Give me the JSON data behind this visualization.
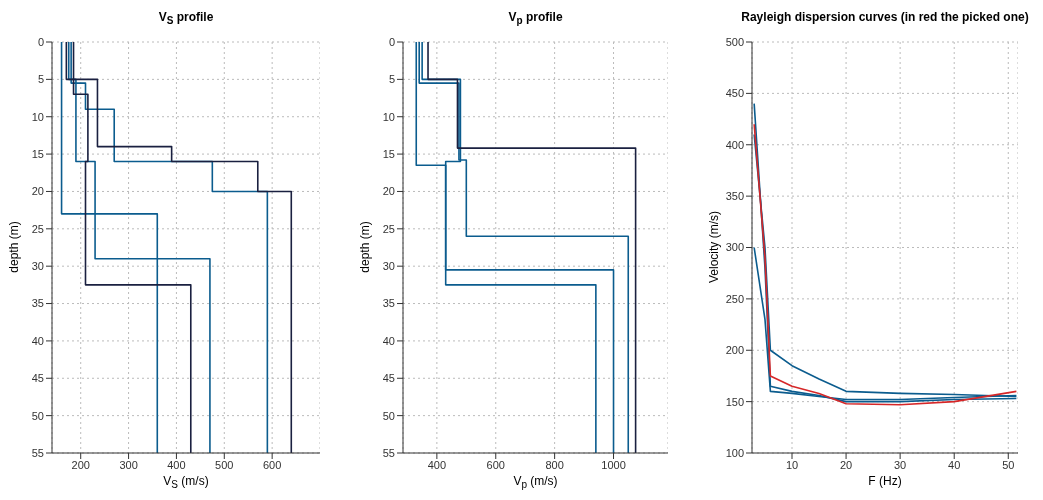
{
  "chart_data": [
    {
      "type": "line",
      "title": "V$_{S}$ profile",
      "xlabel": "V$_{S}$ (m/s)",
      "ylabel": "depth (m)",
      "xlim": [
        140,
        700
      ],
      "xticks": [
        200,
        300,
        400,
        500,
        600
      ],
      "ylim": [
        55,
        0
      ],
      "yticks": [
        0,
        5,
        10,
        15,
        20,
        25,
        30,
        35,
        40,
        45,
        50,
        55
      ],
      "grid": true,
      "series": [
        {
          "color": "#0b5c8e",
          "x": [
            160,
            160,
            360,
            360
          ],
          "values": [
            0,
            23,
            23,
            55
          ]
        },
        {
          "color": "#0b5c8e",
          "x": [
            175,
            175,
            190,
            190,
            230,
            230,
            470,
            470
          ],
          "values": [
            0,
            5,
            5,
            16,
            16,
            29,
            29,
            55
          ]
        },
        {
          "color": "#0b5c8e",
          "x": [
            180,
            180,
            210,
            210,
            270,
            270,
            475,
            475,
            590,
            590
          ],
          "values": [
            0,
            5.5,
            5.5,
            9,
            9,
            16,
            16,
            20,
            20,
            55
          ]
        },
        {
          "color": "#1a2040",
          "x": [
            170,
            170,
            235,
            235,
            390,
            390,
            570,
            570,
            640,
            640
          ],
          "values": [
            0,
            5,
            5,
            14,
            14,
            16,
            16,
            20,
            20,
            55
          ]
        },
        {
          "color": "#1a2040",
          "x": [
            185,
            185,
            215,
            215,
            210,
            210,
            430,
            430
          ],
          "values": [
            0,
            7,
            7,
            16,
            16,
            32.5,
            32.5,
            55
          ]
        }
      ]
    },
    {
      "type": "line",
      "title": "V$_{p}$ profile",
      "xlabel": "V$_{p}$ (m/s)",
      "ylabel": "depth (m)",
      "xlim": [
        285,
        1185
      ],
      "xticks": [
        400,
        600,
        800,
        1000
      ],
      "ylim": [
        55,
        0
      ],
      "yticks": [
        0,
        5,
        10,
        15,
        20,
        25,
        30,
        35,
        40,
        45,
        50,
        55
      ],
      "grid": true,
      "series": [
        {
          "color": "#0b5c8e",
          "x": [
            330,
            330,
            430,
            430,
            940,
            940
          ],
          "values": [
            0,
            16.5,
            16.5,
            32.5,
            32.5,
            55
          ]
        },
        {
          "color": "#0b5c8e",
          "x": [
            350,
            350,
            480,
            480,
            430,
            430,
            1000,
            1000
          ],
          "values": [
            0,
            5,
            5,
            16,
            16,
            30.5,
            30.5,
            55
          ]
        },
        {
          "color": "#0b5c8e",
          "x": [
            340,
            340,
            475,
            475,
            500,
            500,
            1050,
            1050
          ],
          "values": [
            0,
            5.5,
            5.5,
            15.8,
            15.8,
            26,
            26,
            55
          ]
        },
        {
          "color": "#1a2040",
          "x": [
            370,
            370,
            470,
            470,
            1075,
            1075
          ],
          "values": [
            0,
            5,
            5,
            14.2,
            14.2,
            55
          ]
        }
      ]
    },
    {
      "type": "line",
      "title": "Rayleigh dispersion curves (in red the picked one)",
      "xlabel": "F (Hz)",
      "ylabel": "Velocity (m/s)",
      "xlim": [
        2.6,
        51.8
      ],
      "xticks": [
        10,
        20,
        30,
        40,
        50
      ],
      "ylim": [
        100,
        500
      ],
      "yticks": [
        100,
        150,
        200,
        250,
        300,
        350,
        400,
        450,
        500
      ],
      "grid": true,
      "series": [
        {
          "color": "#0b5c8e",
          "x": [
            3,
            5,
            6,
            10,
            15,
            20,
            30,
            40,
            51.5
          ],
          "values": [
            440,
            280,
            165,
            160,
            156,
            150,
            150,
            152,
            153
          ]
        },
        {
          "color": "#0b5c8e",
          "x": [
            3,
            5,
            6,
            10,
            15,
            20,
            30,
            40,
            51.5
          ],
          "values": [
            410,
            300,
            200,
            185,
            172,
            160,
            158,
            157,
            155
          ]
        },
        {
          "color": "#0b5c8e",
          "x": [
            3,
            5,
            6,
            10,
            15,
            20,
            30,
            40,
            51.5
          ],
          "values": [
            300,
            230,
            160,
            158,
            155,
            152,
            152,
            154,
            156
          ]
        },
        {
          "color": "#d62728",
          "x": [
            3,
            5,
            6,
            10,
            15,
            20,
            30,
            40,
            51.5
          ],
          "values": [
            420,
            290,
            175,
            165,
            158,
            148,
            147,
            150,
            160
          ]
        }
      ]
    }
  ]
}
